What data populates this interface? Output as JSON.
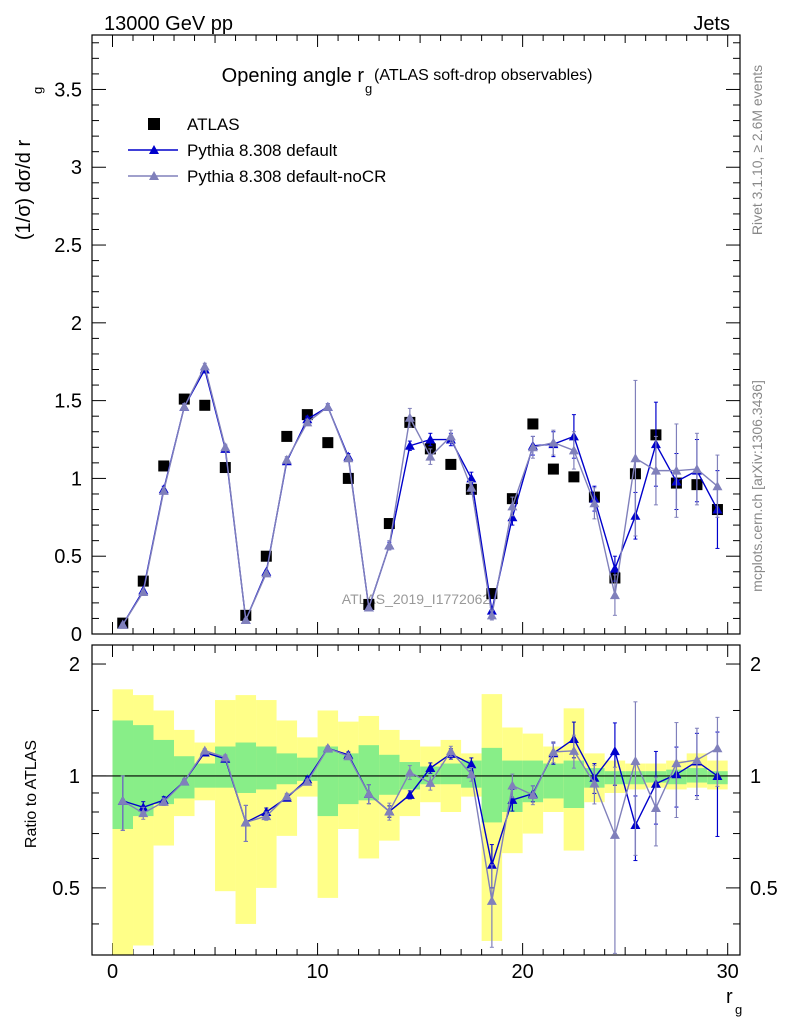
{
  "header": {
    "energy": "13000 GeV pp",
    "category": "Jets"
  },
  "chart_data": {
    "type": "line",
    "title": "Opening angle r",
    "title_sub": "g",
    "title_suffix": "(ATLAS soft-drop observables)",
    "ylabel_main": "(1/σ) dσ/d r",
    "ylabel_sub": "g",
    "ylabel_ratio": "Ratio to ATLAS",
    "xlabel": "r",
    "xlabel_sub": "g",
    "analysis_label": "ATLAS_2019_I1772062",
    "side_label_top": "Rivet 3.1.10, ≥ 2.6M events",
    "side_label_bottom": "mcplots.cern.ch [arXiv:1306.3436]",
    "xlim": [
      -1,
      30.6
    ],
    "ylim": [
      0,
      3.85
    ],
    "ratio_ylim": [
      0.33,
      2.25
    ],
    "x_ticks": [
      0,
      10,
      20,
      30
    ],
    "y_ticks": [
      0,
      0.5,
      1,
      1.5,
      2,
      2.5,
      3,
      3.5
    ],
    "ratio_ticks": [
      0.5,
      1,
      2
    ],
    "x": [
      0.5,
      1.5,
      2.5,
      3.5,
      4.5,
      5.5,
      6.5,
      7.5,
      8.5,
      9.5,
      10.5,
      11.5,
      12.5,
      13.5,
      14.5,
      15.5,
      16.5,
      17.5,
      18.5,
      19.5,
      20.5,
      21.5,
      22.5,
      23.5,
      24.5,
      25.5,
      26.5,
      27.5,
      28.5,
      29.5
    ],
    "series": [
      {
        "name": "ATLAS",
        "color": "#000000",
        "marker": "square",
        "values": [
          0.07,
          0.34,
          1.08,
          1.51,
          1.47,
          1.07,
          0.12,
          0.5,
          1.27,
          1.41,
          1.23,
          1.0,
          0.19,
          0.71,
          1.36,
          1.19,
          1.09,
          0.93,
          0.26,
          0.87,
          1.35,
          1.06,
          1.01,
          0.88,
          0.36,
          1.03,
          1.28,
          0.97,
          0.96,
          0.8
        ]
      },
      {
        "name": "Pythia 8.308 default",
        "color": "#0000cc",
        "marker": "triangle",
        "values": [
          0.06,
          0.28,
          0.93,
          1.46,
          1.7,
          1.19,
          0.09,
          0.4,
          1.11,
          1.38,
          1.46,
          1.14,
          0.17,
          0.57,
          1.21,
          1.25,
          1.25,
          1.0,
          0.15,
          0.75,
          1.21,
          1.22,
          1.27,
          0.87,
          0.42,
          0.76,
          1.22,
          0.98,
          1.05,
          0.8
        ],
        "errors": [
          0.01,
          0.01,
          0.02,
          0.02,
          0.02,
          0.02,
          0.01,
          0.01,
          0.02,
          0.02,
          0.02,
          0.02,
          0.01,
          0.02,
          0.03,
          0.04,
          0.04,
          0.04,
          0.02,
          0.05,
          0.06,
          0.08,
          0.14,
          0.08,
          0.08,
          0.15,
          0.27,
          0.18,
          0.2,
          0.25
        ]
      },
      {
        "name": "Pythia 8.308 default-noCR",
        "color": "#8080bb",
        "marker": "triangle",
        "values": [
          0.06,
          0.27,
          0.92,
          1.46,
          1.72,
          1.2,
          0.09,
          0.39,
          1.12,
          1.36,
          1.46,
          1.13,
          0.17,
          0.57,
          1.39,
          1.14,
          1.27,
          0.94,
          0.12,
          0.82,
          1.2,
          1.23,
          1.18,
          0.84,
          0.25,
          1.13,
          1.05,
          1.05,
          1.06,
          0.95
        ],
        "errors": [
          0.01,
          0.01,
          0.02,
          0.02,
          0.02,
          0.02,
          0.01,
          0.01,
          0.02,
          0.02,
          0.02,
          0.02,
          0.01,
          0.03,
          0.06,
          0.05,
          0.04,
          0.04,
          0.03,
          0.06,
          0.07,
          0.08,
          0.12,
          0.1,
          0.13,
          0.5,
          0.22,
          0.3,
          0.23,
          0.2
        ]
      }
    ],
    "bands": {
      "inner_color": "#88ee88",
      "outer_color": "#ffff88",
      "inner": [
        [
          0.72,
          1.41
        ],
        [
          0.78,
          1.37
        ],
        [
          0.84,
          1.25
        ],
        [
          0.87,
          1.13
        ],
        [
          0.93,
          1.08
        ],
        [
          0.93,
          1.2
        ],
        [
          0.9,
          1.23
        ],
        [
          0.92,
          1.2
        ],
        [
          0.95,
          1.15
        ],
        [
          0.97,
          1.12
        ],
        [
          0.78,
          1.2
        ],
        [
          0.84,
          1.15
        ],
        [
          0.86,
          1.21
        ],
        [
          0.89,
          1.14
        ],
        [
          0.92,
          1.09
        ],
        [
          0.95,
          1.06
        ],
        [
          0.95,
          1.08
        ],
        [
          0.93,
          1.1
        ],
        [
          0.75,
          1.19
        ],
        [
          0.8,
          1.1
        ],
        [
          0.85,
          1.1
        ],
        [
          0.87,
          1.08
        ],
        [
          0.82,
          1.1
        ],
        [
          0.93,
          1.05
        ],
        [
          0.95,
          1.03
        ],
        [
          0.95,
          1.03
        ],
        [
          0.96,
          1.03
        ],
        [
          0.95,
          1.04
        ],
        [
          0.96,
          1.05
        ],
        [
          0.95,
          1.03
        ]
      ],
      "outer": [
        [
          0.33,
          1.71
        ],
        [
          0.35,
          1.65
        ],
        [
          0.65,
          1.5
        ],
        [
          0.78,
          1.33
        ],
        [
          0.86,
          1.23
        ],
        [
          0.49,
          1.6
        ],
        [
          0.4,
          1.65
        ],
        [
          0.5,
          1.6
        ],
        [
          0.69,
          1.41
        ],
        [
          0.88,
          1.27
        ],
        [
          0.47,
          1.5
        ],
        [
          0.72,
          1.4
        ],
        [
          0.6,
          1.45
        ],
        [
          0.67,
          1.33
        ],
        [
          0.78,
          1.25
        ],
        [
          0.85,
          1.2
        ],
        [
          0.8,
          1.25
        ],
        [
          0.88,
          1.15
        ],
        [
          0.36,
          1.66
        ],
        [
          0.62,
          1.35
        ],
        [
          0.7,
          1.3
        ],
        [
          0.8,
          1.2
        ],
        [
          0.63,
          1.52
        ],
        [
          0.85,
          1.15
        ],
        [
          0.9,
          1.1
        ],
        [
          0.92,
          1.08
        ],
        [
          0.93,
          1.08
        ],
        [
          0.92,
          1.1
        ],
        [
          0.93,
          1.15
        ],
        [
          0.92,
          1.1
        ]
      ]
    }
  }
}
